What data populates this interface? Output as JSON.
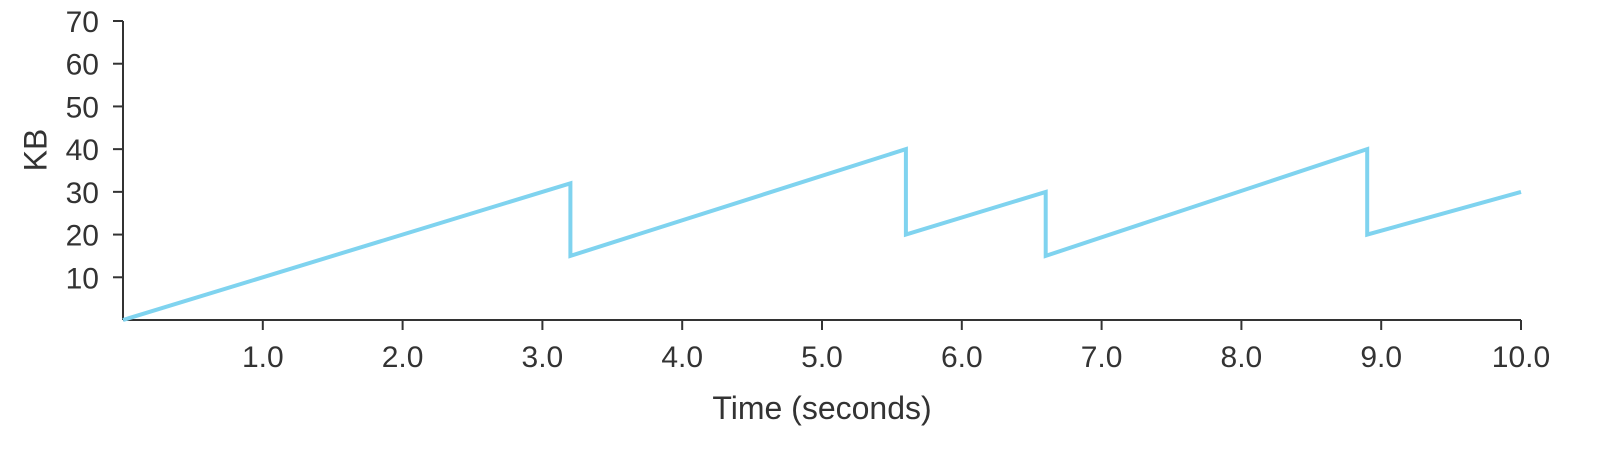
{
  "chart_data": {
    "type": "line",
    "title": "",
    "xlabel": "Time (seconds)",
    "ylabel": "KB",
    "xlim": [
      0,
      10
    ],
    "ylim": [
      0,
      70
    ],
    "x_ticks": [
      1,
      2,
      3,
      4,
      5,
      6,
      7,
      8,
      9,
      10
    ],
    "x_tick_labels": [
      "1.0",
      "2.0",
      "3.0",
      "4.0",
      "5.0",
      "6.0",
      "7.0",
      "8.0",
      "9.0",
      "10.0"
    ],
    "y_ticks": [
      10,
      20,
      30,
      40,
      50,
      60,
      70
    ],
    "y_tick_labels": [
      "10",
      "20",
      "30",
      "40",
      "50",
      "60",
      "70"
    ],
    "grid": false,
    "legend": "none",
    "series": [
      {
        "color": "#7fd3ef",
        "points": [
          [
            0.0,
            0
          ],
          [
            3.2,
            32
          ],
          [
            3.2,
            15
          ],
          [
            5.6,
            40
          ],
          [
            5.6,
            20
          ],
          [
            6.6,
            30
          ],
          [
            6.6,
            15
          ],
          [
            8.9,
            40
          ],
          [
            8.9,
            20
          ],
          [
            10.0,
            30
          ]
        ]
      }
    ]
  }
}
